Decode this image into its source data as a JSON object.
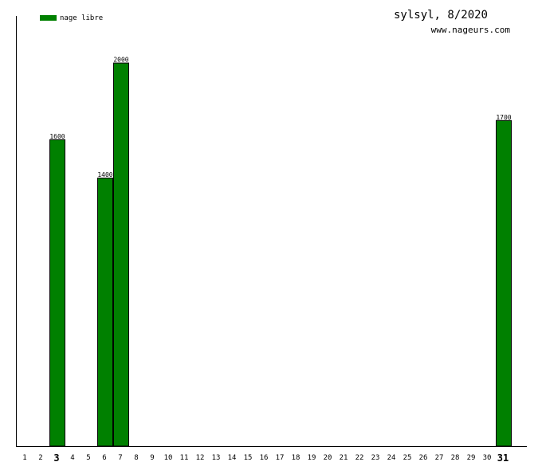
{
  "header": {
    "title": "sylsyl, 8/2020",
    "site": "www.nageurs.com"
  },
  "legend": {
    "label": "nage libre",
    "color": "#008000",
    "placement": "top-left"
  },
  "chart_data": {
    "type": "bar",
    "title": "sylsyl, 8/2020",
    "xlabel": "",
    "ylabel": "",
    "categories": [
      "1",
      "2",
      "3",
      "4",
      "5",
      "6",
      "7",
      "8",
      "9",
      "10",
      "11",
      "12",
      "13",
      "14",
      "15",
      "16",
      "17",
      "18",
      "19",
      "20",
      "21",
      "22",
      "23",
      "24",
      "25",
      "26",
      "27",
      "28",
      "29",
      "30",
      "31"
    ],
    "bold_categories": [
      "3",
      "31"
    ],
    "series": [
      {
        "name": "nage libre",
        "color": "#008000",
        "values": [
          0,
          0,
          1600,
          0,
          0,
          1400,
          2000,
          0,
          0,
          0,
          0,
          0,
          0,
          0,
          0,
          0,
          0,
          0,
          0,
          0,
          0,
          0,
          0,
          0,
          0,
          0,
          0,
          0,
          0,
          0,
          1700
        ]
      }
    ],
    "ylim": [
      0,
      2250
    ],
    "grid": false
  }
}
